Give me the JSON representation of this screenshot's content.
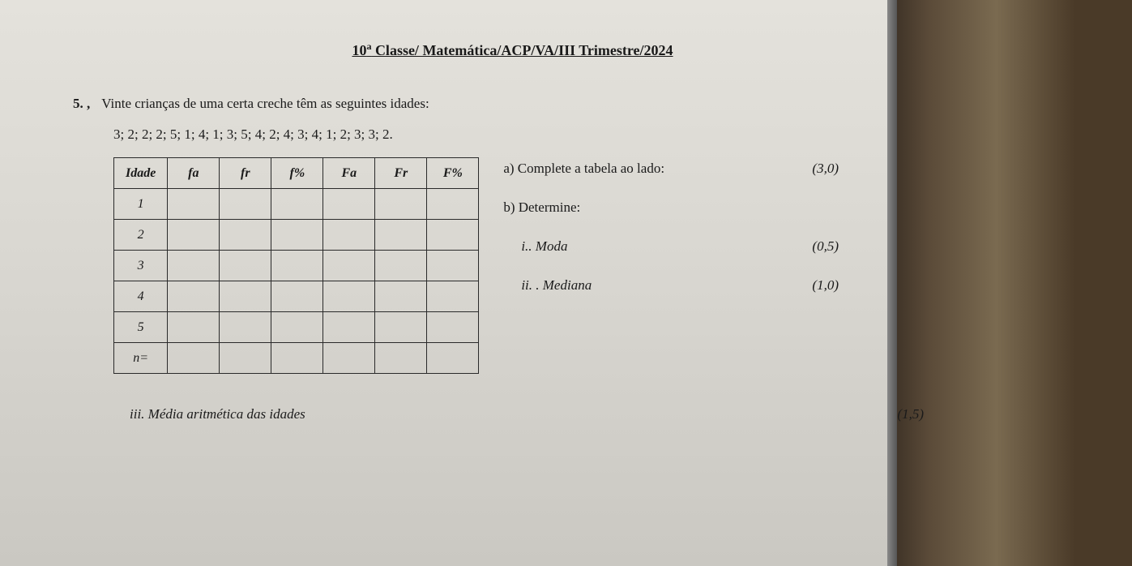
{
  "header": {
    "title_prefix": "10",
    "title_sup": "a",
    "title_rest": " Classe/ Matemática/ACP/VA/III Trimestre/2024"
  },
  "question": {
    "number": "5. ,",
    "text": "Vinte crianças de uma certa creche têm as seguintes idades:",
    "data": "3; 2; 2; 2; 5; 1; 4; 1; 3; 5; 4; 2; 4; 3; 4; 1; 2; 3; 3; 2."
  },
  "table": {
    "headers": [
      "Idade",
      "fa",
      "fr",
      "f%",
      "Fa",
      "Fr",
      "F%"
    ],
    "rows": [
      [
        "1",
        "",
        "",
        "",
        "",
        "",
        ""
      ],
      [
        "2",
        "",
        "",
        "",
        "",
        "",
        ""
      ],
      [
        "3",
        "",
        "",
        "",
        "",
        "",
        ""
      ],
      [
        "4",
        "",
        "",
        "",
        "",
        "",
        ""
      ],
      [
        "5",
        "",
        "",
        "",
        "",
        "",
        ""
      ],
      [
        "n=",
        "",
        "",
        "",
        "",
        "",
        ""
      ]
    ]
  },
  "parts": {
    "a": {
      "label": "a) Complete a tabela ao lado:",
      "points": "(3,0)"
    },
    "b": {
      "label": "b) Determine:"
    },
    "bi": {
      "label": "i.. Moda",
      "points": "(0,5)"
    },
    "bii": {
      "label": "ii.  . Mediana",
      "points": "(1,0)"
    },
    "biii": {
      "label": "iii. Média aritmética das idades",
      "points": "(1,5)"
    }
  },
  "colors": {
    "text": "#1a1a1a",
    "border": "#2a2a2a",
    "paper": "#dedcd6"
  }
}
